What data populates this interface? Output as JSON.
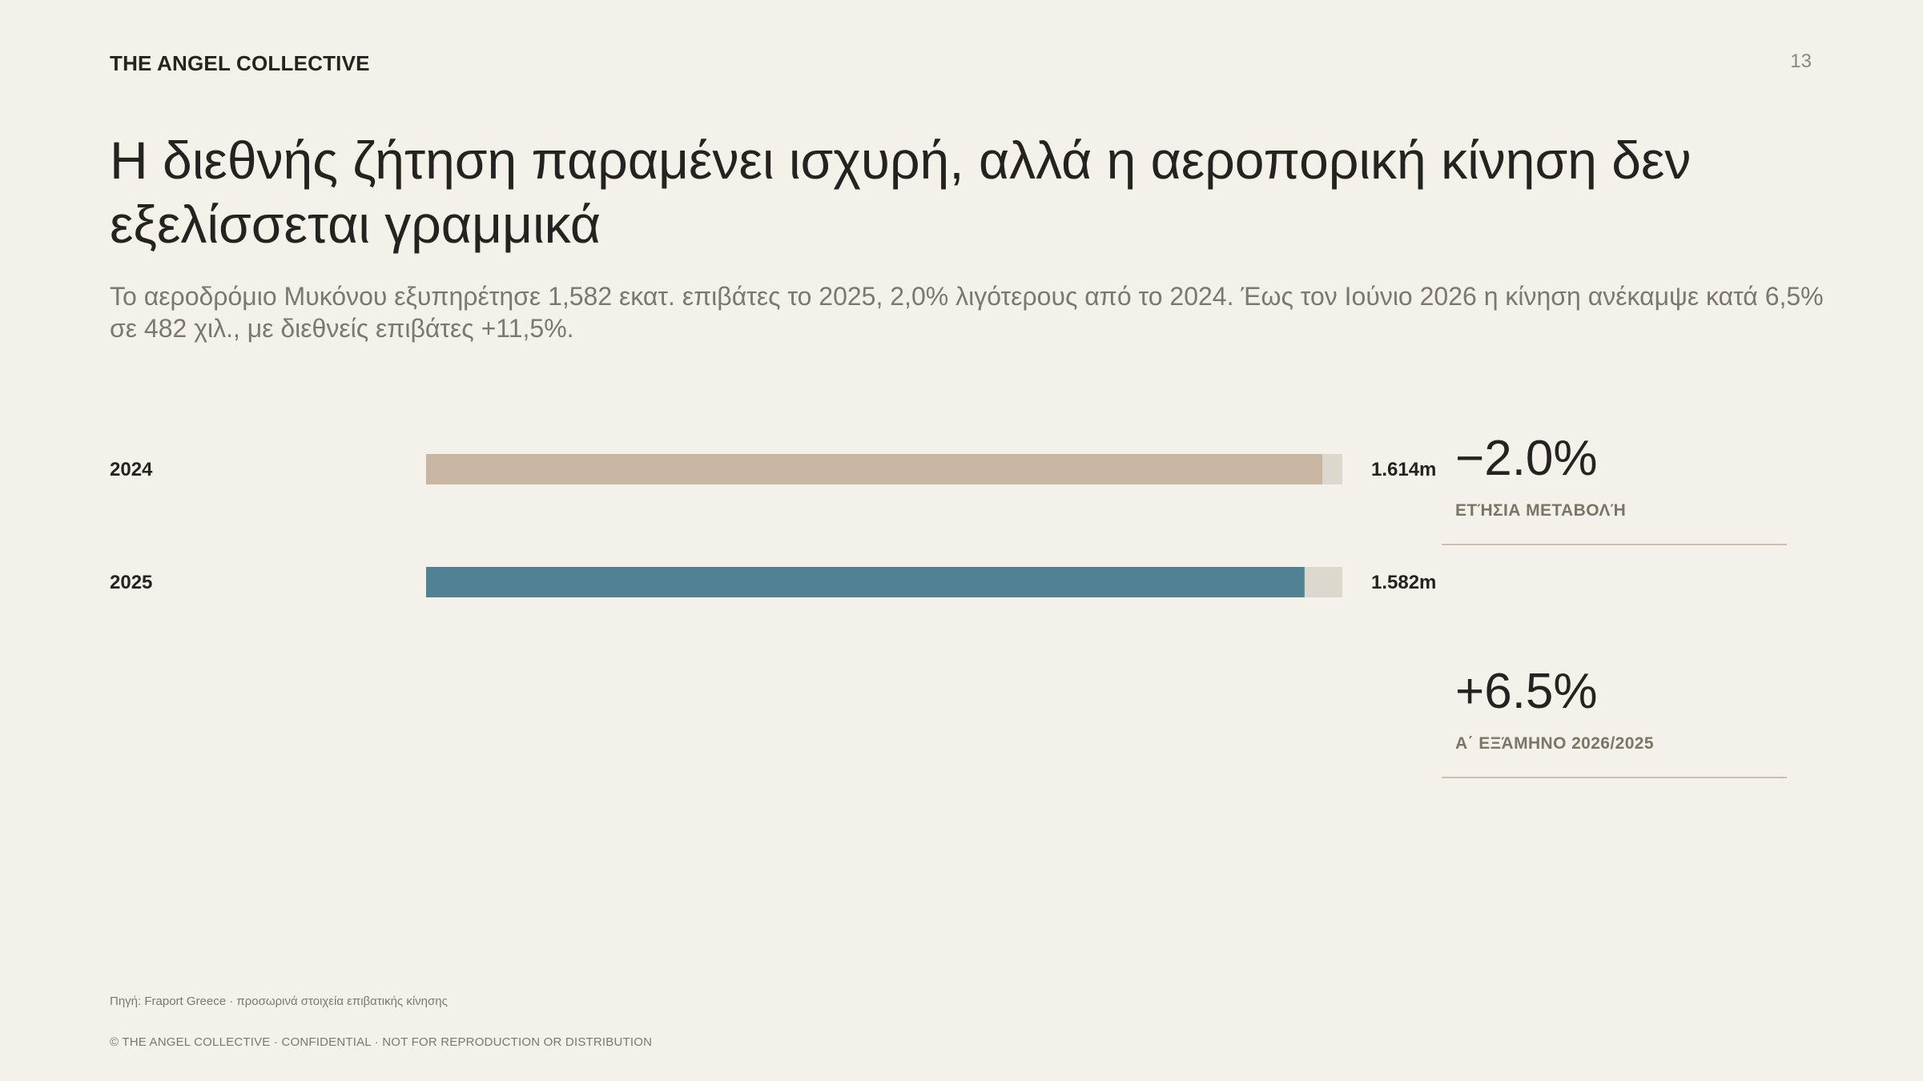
{
  "header": {
    "brand": "THE ANGEL COLLECTIVE",
    "page_number": "13"
  },
  "title": "Η διεθνής ζήτηση παραμένει ισχυρή, αλλά η αεροπορική κίνηση δεν εξελίσσεται γραμμικά",
  "subtitle": "Το αεροδρόμιο Μυκόνου εξυπηρέτησε 1,582 εκατ. επιβάτες το 2025, 2,0% λιγότερους από το 2024. Έως τον Ιούνιο 2026 η κίνηση ανέκαμψε κατά 6,5% σε 482 χιλ., με διεθνείς επιβάτες +11,5%.",
  "chart_data": {
    "type": "bar",
    "orientation": "horizontal",
    "categories": [
      "2024",
      "2025"
    ],
    "values": [
      1.614,
      1.582
    ],
    "value_labels": [
      "1.614m",
      "1.582m"
    ],
    "xlim": [
      0,
      1.65
    ],
    "colors": [
      "#c8b6a2",
      "#518293"
    ],
    "track_color": "#dcd8cd",
    "grid": false
  },
  "kpis": [
    {
      "value": "−2.0%",
      "label": "ΕΤΉΣΙΑ ΜΕΤΑΒΟΛΉ"
    },
    {
      "value": "+6.5%",
      "label": "Α΄ ΕΞΆΜΗΝΟ 2026/2025"
    }
  ],
  "source": "Πηγή: Fraport Greece · προσωρινά στοιχεία επιβατικής κίνησης",
  "footer": "© THE ANGEL COLLECTIVE · CONFIDENTIAL · NOT FOR REPRODUCTION OR DISTRIBUTION"
}
